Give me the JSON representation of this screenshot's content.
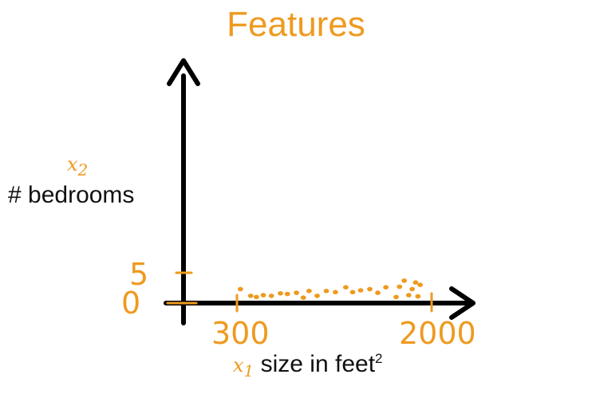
{
  "chart_data": {
    "type": "scatter",
    "title": "Features",
    "xlabel_var": "x1",
    "xlabel_var_base": "x",
    "xlabel_var_sub": "1",
    "xlabel": "size in feet",
    "xlabel_sup": "2",
    "ylabel_var_base": "x",
    "ylabel_var_sub": "2",
    "ylabel": "# bedrooms",
    "x_ticks": [
      "300",
      "2000"
    ],
    "y_ticks": [
      "5",
      "0"
    ],
    "xlim": [
      300,
      2000
    ],
    "ylim": [
      0,
      5
    ],
    "grid": false,
    "points": [
      {
        "x": 330,
        "y": 2.3
      },
      {
        "x": 420,
        "y": 1.2
      },
      {
        "x": 470,
        "y": 1.0
      },
      {
        "x": 530,
        "y": 1.3
      },
      {
        "x": 600,
        "y": 1.2
      },
      {
        "x": 680,
        "y": 1.6
      },
      {
        "x": 740,
        "y": 1.5
      },
      {
        "x": 820,
        "y": 1.7
      },
      {
        "x": 880,
        "y": 0.9
      },
      {
        "x": 930,
        "y": 2.0
      },
      {
        "x": 1000,
        "y": 1.2
      },
      {
        "x": 1080,
        "y": 2.0
      },
      {
        "x": 1160,
        "y": 1.8
      },
      {
        "x": 1250,
        "y": 2.6
      },
      {
        "x": 1310,
        "y": 1.8
      },
      {
        "x": 1380,
        "y": 2.1
      },
      {
        "x": 1460,
        "y": 2.3
      },
      {
        "x": 1530,
        "y": 1.7
      },
      {
        "x": 1600,
        "y": 2.6
      },
      {
        "x": 1690,
        "y": 1.0
      },
      {
        "x": 1720,
        "y": 2.7
      },
      {
        "x": 1760,
        "y": 3.7
      },
      {
        "x": 1800,
        "y": 1.3
      },
      {
        "x": 1830,
        "y": 2.3
      },
      {
        "x": 1860,
        "y": 3.4
      },
      {
        "x": 1880,
        "y": 1.1
      },
      {
        "x": 1900,
        "y": 3.0
      }
    ],
    "colors": {
      "accent": "#ee9a1f",
      "axis": "#000000"
    }
  }
}
